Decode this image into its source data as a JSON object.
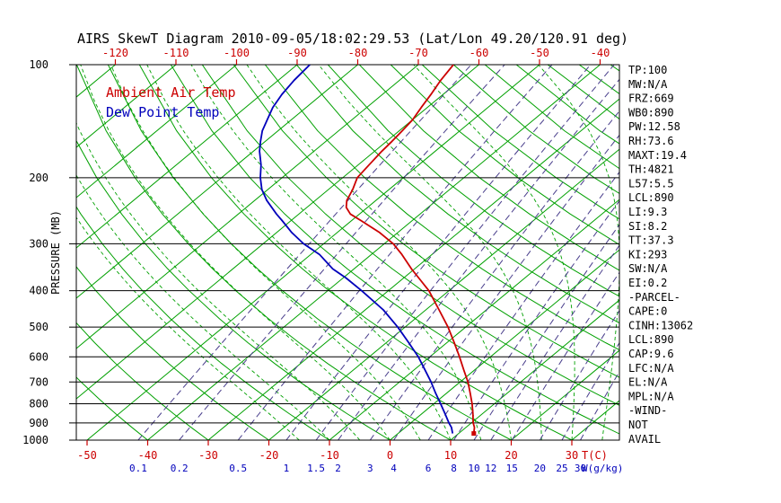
{
  "chart_data": {
    "type": "line",
    "subtype": "skewt_log_p",
    "title": "AIRS SkewT Diagram 2010-09-05/18:02:29.53 (Lat/Lon 49.20/120.91 deg)",
    "legend": {
      "ambient_label": "Ambient Air Temp",
      "dewpoint_label": "Dew Point Temp"
    },
    "x_axis": {
      "unit": "T(C)",
      "top_ticks": [
        -120,
        -110,
        -100,
        -90,
        -80,
        -70,
        -60,
        -50,
        -40
      ],
      "bottom_ticks": [
        -50,
        -40,
        -30,
        -20,
        -10,
        0,
        10,
        20,
        30
      ],
      "color": "#cc0000"
    },
    "y_axis": {
      "label": "PRESSURE (MB)",
      "scale": "log",
      "range": [
        100,
        1000
      ],
      "ticks": [
        100,
        200,
        300,
        400,
        500,
        600,
        700,
        800,
        900,
        1000
      ]
    },
    "mixing": {
      "unit": "W(g/kg)",
      "values": [
        0.1,
        0.2,
        0.5,
        1,
        1.5,
        2,
        3,
        4,
        6,
        8,
        10,
        12,
        15,
        20,
        25,
        30
      ],
      "color": "#483d8b"
    },
    "grid": {
      "isotherm_step_c": 10,
      "isotherm_color": "#00a000",
      "dry_adiabat_color": "#00a000",
      "moist_adiabat_color": "#00a000",
      "pressure_line_color": "#000000"
    },
    "series": [
      {
        "name": "Ambient Air Temp",
        "color": "#cc0000",
        "points": [
          [
            960,
            12.5
          ],
          [
            925,
            11.4
          ],
          [
            900,
            10.3
          ],
          [
            850,
            8.4
          ],
          [
            800,
            6.3
          ],
          [
            750,
            3.9
          ],
          [
            700,
            1.3
          ],
          [
            650,
            -1.8
          ],
          [
            600,
            -5.1
          ],
          [
            550,
            -8.8
          ],
          [
            500,
            -12.9
          ],
          [
            450,
            -17.8
          ],
          [
            400,
            -23.3
          ],
          [
            370,
            -27.5
          ],
          [
            350,
            -30.5
          ],
          [
            320,
            -35.0
          ],
          [
            300,
            -38.5
          ],
          [
            280,
            -43.0
          ],
          [
            260,
            -48.5
          ],
          [
            250,
            -51.5
          ],
          [
            240,
            -53.5
          ],
          [
            230,
            -54.8
          ],
          [
            215,
            -56.0
          ],
          [
            200,
            -57.6
          ],
          [
            185,
            -58.2
          ],
          [
            170,
            -58.8
          ],
          [
            160,
            -59.1
          ],
          [
            150,
            -59.5
          ],
          [
            140,
            -60.0
          ],
          [
            130,
            -61.0
          ],
          [
            120,
            -62.0
          ],
          [
            110,
            -63.2
          ],
          [
            100,
            -64.2
          ]
        ]
      },
      {
        "name": "Dew Point Temp",
        "color": "#0000bb",
        "points": [
          [
            960,
            9.0
          ],
          [
            925,
            7.6
          ],
          [
            900,
            6.3
          ],
          [
            850,
            3.8
          ],
          [
            800,
            1.1
          ],
          [
            750,
            -1.8
          ],
          [
            700,
            -4.8
          ],
          [
            650,
            -8.2
          ],
          [
            600,
            -11.9
          ],
          [
            550,
            -16.3
          ],
          [
            500,
            -21.2
          ],
          [
            450,
            -27.0
          ],
          [
            400,
            -34.4
          ],
          [
            370,
            -39.5
          ],
          [
            350,
            -43.5
          ],
          [
            320,
            -48.6
          ],
          [
            300,
            -53.3
          ],
          [
            280,
            -57.5
          ],
          [
            260,
            -61.5
          ],
          [
            250,
            -63.7
          ],
          [
            230,
            -68.0
          ],
          [
            215,
            -71.0
          ],
          [
            200,
            -73.6
          ],
          [
            185,
            -76.0
          ],
          [
            170,
            -79.0
          ],
          [
            160,
            -80.8
          ],
          [
            150,
            -82.6
          ],
          [
            140,
            -84.0
          ],
          [
            130,
            -85.5
          ],
          [
            120,
            -86.6
          ],
          [
            110,
            -87.4
          ],
          [
            100,
            -87.9
          ]
        ]
      }
    ],
    "stats": [
      "TP:100",
      "MW:N/A",
      "FRZ:669",
      "WB0:890",
      "PW:12.58",
      "RH:73.6",
      "MAXT:19.4",
      "TH:4821",
      "L57:5.5",
      "LCL:890",
      "LI:9.3",
      "SI:8.2",
      "TT:37.3",
      "KI:293",
      "SW:N/A",
      "EI:0.2",
      "-PARCEL-",
      "CAPE:0",
      "CINH:13062",
      "LCL:890",
      "CAP:9.6",
      "LFC:N/A",
      "EL:N/A",
      "MPL:N/A",
      "-WIND-",
      "NOT",
      "AVAIL"
    ]
  }
}
